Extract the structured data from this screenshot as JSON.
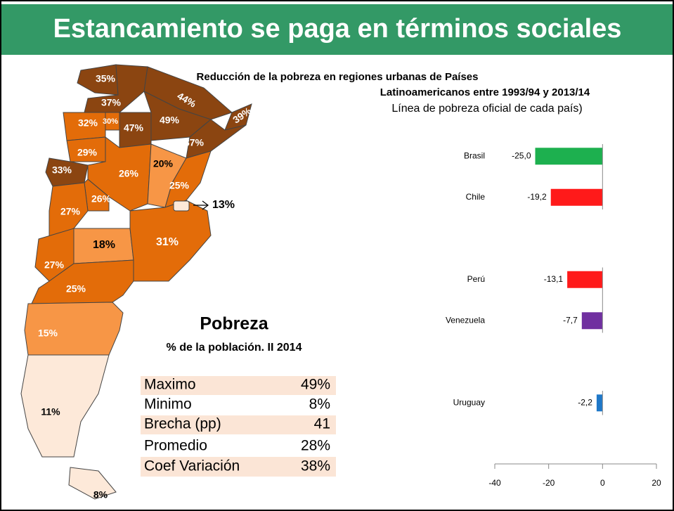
{
  "header": {
    "title": "Estancamiento se paga en términos sociales"
  },
  "map": {
    "labels": [
      "35%",
      "37%",
      "44%",
      "39%",
      "32%",
      "30%",
      "47%",
      "49%",
      "37%",
      "29%",
      "33%",
      "26%",
      "20%",
      "25%",
      "26%",
      "27%",
      "13%",
      "18%",
      "31%",
      "27%",
      "25%",
      "15%",
      "11%",
      "8%"
    ]
  },
  "table": {
    "title": "Pobreza",
    "subtitle": "% de la población. II 2014",
    "rows": [
      [
        "Maximo",
        "49%"
      ],
      [
        "Minimo",
        "8%"
      ],
      [
        "Brecha (pp)",
        "41"
      ],
      [
        "Promedio",
        "28%"
      ],
      [
        "Coef Variación",
        "38%"
      ]
    ]
  },
  "chart_data": {
    "type": "bar",
    "orientation": "horizontal",
    "title": [
      "Reducción de la pobreza en regiones urbanas de Países",
      "Latinoamericanos entre 1993/94 y 2013/14"
    ],
    "subtitle": "Línea de pobreza oficial de cada país)",
    "categories": [
      "Brasil",
      "Chile",
      null,
      "Perú",
      "Venezuela",
      null,
      "Uruguay"
    ],
    "values": [
      -25.0,
      -19.2,
      null,
      -13.1,
      -7.7,
      null,
      -2.2
    ],
    "value_labels": [
      "-25,0",
      "-19,2",
      null,
      "-13,1",
      "-7,7",
      null,
      "-2,2"
    ],
    "colors": [
      "#1db04f",
      "#ff1a1a",
      null,
      "#ff1a1a",
      "#7030a0",
      null,
      "#1f78c8"
    ],
    "xlim": [
      -40,
      20
    ],
    "xticks": [
      -40,
      -20,
      0,
      20
    ],
    "grid": false
  }
}
